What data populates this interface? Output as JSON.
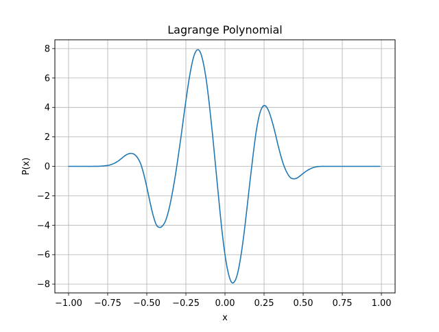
{
  "chart_data": {
    "type": "line",
    "title": "Lagrange Polynomial",
    "xlabel": "x",
    "ylabel": "P(x)",
    "xlim": [
      -1.0875,
      1.0875
    ],
    "ylim": [
      -8.6,
      8.6
    ],
    "xticks": [
      -1.0,
      -0.75,
      -0.5,
      -0.25,
      0.0,
      0.25,
      0.5,
      0.75,
      1.0
    ],
    "xtick_labels": [
      "−1.00",
      "−0.75",
      "−0.50",
      "−0.25",
      "0.00",
      "0.25",
      "0.50",
      "0.75",
      "1.00"
    ],
    "yticks": [
      -8,
      -6,
      -4,
      -2,
      0,
      2,
      4,
      6,
      8
    ],
    "ytick_labels": [
      "−8",
      "−6",
      "−4",
      "−2",
      "0",
      "2",
      "4",
      "6",
      "8"
    ],
    "grid": true,
    "series": [
      {
        "color": "#1f77b4",
        "x": [
          -1.0,
          -0.95,
          -0.9,
          -0.85,
          -0.8,
          -0.75,
          -0.72,
          -0.7,
          -0.68,
          -0.66,
          -0.64,
          -0.62,
          -0.6,
          -0.58,
          -0.56,
          -0.54,
          -0.52,
          -0.5,
          -0.48,
          -0.46,
          -0.44,
          -0.42,
          -0.4,
          -0.38,
          -0.36,
          -0.34,
          -0.32,
          -0.3,
          -0.28,
          -0.26,
          -0.24,
          -0.22,
          -0.2,
          -0.18,
          -0.16,
          -0.14,
          -0.12,
          -0.1,
          -0.08,
          -0.06,
          -0.04,
          -0.02,
          0.0,
          0.02,
          0.04,
          0.06,
          0.08,
          0.1,
          0.12,
          0.14,
          0.16,
          0.18,
          0.2,
          0.22,
          0.24,
          0.26,
          0.28,
          0.3,
          0.32,
          0.34,
          0.36,
          0.38,
          0.4,
          0.42,
          0.44,
          0.46,
          0.48,
          0.5,
          0.52,
          0.54,
          0.56,
          0.58,
          0.6,
          0.62,
          0.64,
          0.66,
          0.68,
          0.7,
          0.72,
          0.75,
          0.8,
          0.85,
          0.9,
          0.95,
          0.99
        ],
        "y": [
          0.0,
          0.0,
          0.0,
          0.0,
          0.01,
          0.06,
          0.15,
          0.25,
          0.38,
          0.55,
          0.72,
          0.84,
          0.88,
          0.82,
          0.6,
          0.2,
          -0.5,
          -1.4,
          -2.4,
          -3.3,
          -3.95,
          -4.15,
          -4.05,
          -3.7,
          -3.0,
          -2.0,
          -0.8,
          0.6,
          2.1,
          3.7,
          5.2,
          6.5,
          7.45,
          7.9,
          7.8,
          7.1,
          5.9,
          4.2,
          2.2,
          0.0,
          -2.2,
          -4.3,
          -6.0,
          -7.2,
          -7.85,
          -7.85,
          -7.3,
          -6.2,
          -4.7,
          -2.9,
          -1.0,
          0.8,
          2.4,
          3.5,
          4.05,
          4.1,
          3.75,
          3.1,
          2.3,
          1.4,
          0.6,
          -0.05,
          -0.5,
          -0.78,
          -0.85,
          -0.8,
          -0.65,
          -0.48,
          -0.32,
          -0.2,
          -0.1,
          -0.04,
          -0.01,
          0.0,
          0.0,
          0.0,
          0.0,
          0.0,
          0.0,
          0.0,
          0.0,
          0.0,
          0.0,
          0.0,
          0.0
        ]
      }
    ]
  }
}
